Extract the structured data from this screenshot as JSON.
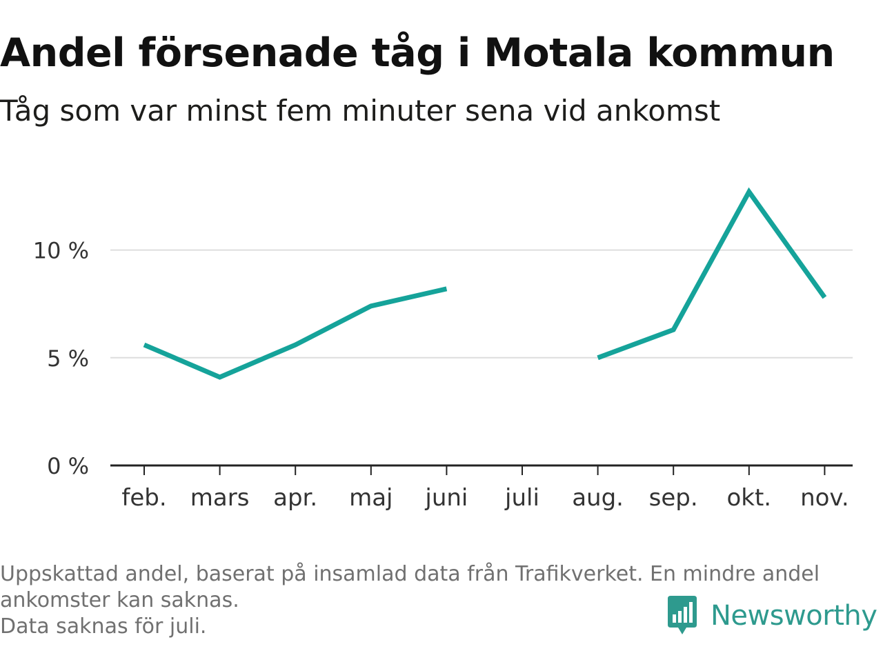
{
  "title": "Andel försenade tåg i Motala kommun",
  "subtitle": "Tåg som var minst fem minuter sena vid ankomst",
  "footnote": [
    "Uppskattad andel, baserat på insamlad data från Trafikverket. En mindre andel",
    "ankomster kan saknas.",
    "Data saknas för juli."
  ],
  "brand": {
    "name": "Newsworthy",
    "icon": "bar-chart-speech-bubble-icon"
  },
  "colors": {
    "line": "#15a39a",
    "grid": "#dddddd",
    "axis": "#222222",
    "brand": "#2e9a8e"
  },
  "chart_data": {
    "type": "line",
    "categories": [
      "feb.",
      "mars",
      "apr.",
      "maj",
      "juni",
      "juli",
      "aug.",
      "sep.",
      "okt.",
      "nov."
    ],
    "series": [
      {
        "values": [
          5.6,
          4.1,
          5.6,
          7.4,
          8.2,
          null,
          5.0,
          6.3,
          12.7,
          7.8
        ]
      }
    ],
    "y_ticks": [
      0,
      5,
      10
    ],
    "y_tick_labels": [
      "0 %",
      "5 %",
      "10 %"
    ],
    "ylim": [
      0,
      12.9
    ],
    "grid": true,
    "legend": "none"
  }
}
